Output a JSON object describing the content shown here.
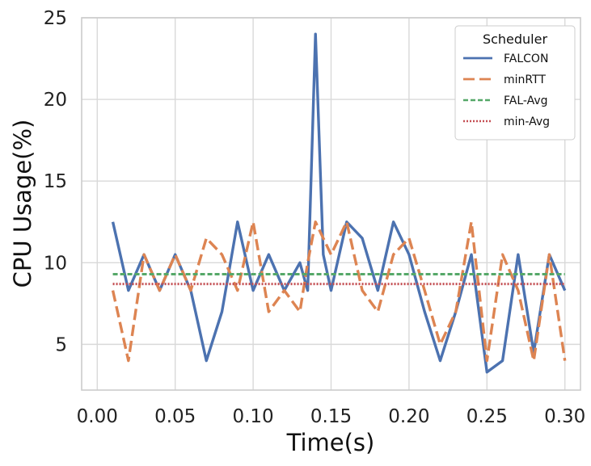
{
  "chart_data": {
    "type": "line",
    "title": "",
    "xlabel": "Time(s)",
    "ylabel": "CPU Usage(%)",
    "xlim": [
      -0.01,
      0.31
    ],
    "ylim": [
      2.2,
      25
    ],
    "xticks": [
      0.0,
      0.05,
      0.1,
      0.15,
      0.2,
      0.25,
      0.3
    ],
    "xtick_labels": [
      "0.00",
      "0.05",
      "0.10",
      "0.15",
      "0.20",
      "0.25",
      "0.30"
    ],
    "yticks": [
      5,
      10,
      15,
      20,
      25
    ],
    "ytick_labels": [
      "5",
      "10",
      "15",
      "20",
      "25"
    ],
    "grid": true,
    "legend": {
      "title": "Scheduler",
      "placement": "top-right",
      "entries": [
        "FALCON",
        "minRTT",
        "FAL-Avg",
        "min-Avg"
      ]
    },
    "x": [
      0.01,
      0.02,
      0.03,
      0.04,
      0.05,
      0.06,
      0.07,
      0.08,
      0.09,
      0.1,
      0.11,
      0.12,
      0.13,
      0.135,
      0.14,
      0.145,
      0.15,
      0.16,
      0.17,
      0.18,
      0.19,
      0.2,
      0.21,
      0.22,
      0.23,
      0.24,
      0.25,
      0.26,
      0.27,
      0.28,
      0.29,
      0.3
    ],
    "series": [
      {
        "name": "FALCON",
        "color": "#4c72b0",
        "dash": "solid",
        "values": [
          12.5,
          8.3,
          10.5,
          8.3,
          10.5,
          8.3,
          4.0,
          7.0,
          12.5,
          8.3,
          10.5,
          8.3,
          10.0,
          8.3,
          24.0,
          10.5,
          8.3,
          12.5,
          11.5,
          8.3,
          12.5,
          10.5,
          7.0,
          4.0,
          7.0,
          10.5,
          3.3,
          4.0,
          10.5,
          4.5,
          10.5,
          8.3
        ]
      },
      {
        "name": "minRTT",
        "color": "#dd8452",
        "dash": "dashed",
        "values": [
          8.3,
          4.0,
          10.5,
          8.3,
          10.5,
          8.3,
          11.5,
          10.5,
          8.3,
          12.5,
          7.0,
          8.3,
          7.0,
          10.0,
          12.5,
          11.5,
          10.5,
          12.5,
          8.3,
          7.0,
          10.5,
          11.5,
          8.3,
          5.0,
          7.0,
          12.5,
          4.0,
          10.5,
          8.3,
          4.0,
          10.5,
          4.0
        ]
      },
      {
        "name": "FAL-Avg",
        "color": "#55a868",
        "dash": "dotted-short",
        "values": [
          9.3,
          9.3,
          9.3,
          9.3,
          9.3,
          9.3,
          9.3,
          9.3,
          9.3,
          9.3,
          9.3,
          9.3,
          9.3,
          9.3,
          9.3,
          9.3,
          9.3,
          9.3,
          9.3,
          9.3,
          9.3,
          9.3,
          9.3,
          9.3,
          9.3,
          9.3,
          9.3,
          9.3,
          9.3,
          9.3,
          9.3,
          9.3
        ]
      },
      {
        "name": "min-Avg",
        "color": "#c44e52",
        "dash": "dotted",
        "values": [
          8.7,
          8.7,
          8.7,
          8.7,
          8.7,
          8.7,
          8.7,
          8.7,
          8.7,
          8.7,
          8.7,
          8.7,
          8.7,
          8.7,
          8.7,
          8.7,
          8.7,
          8.7,
          8.7,
          8.7,
          8.7,
          8.7,
          8.7,
          8.7,
          8.7,
          8.7,
          8.7,
          8.7,
          8.7,
          8.7,
          8.7,
          8.7
        ]
      }
    ]
  }
}
